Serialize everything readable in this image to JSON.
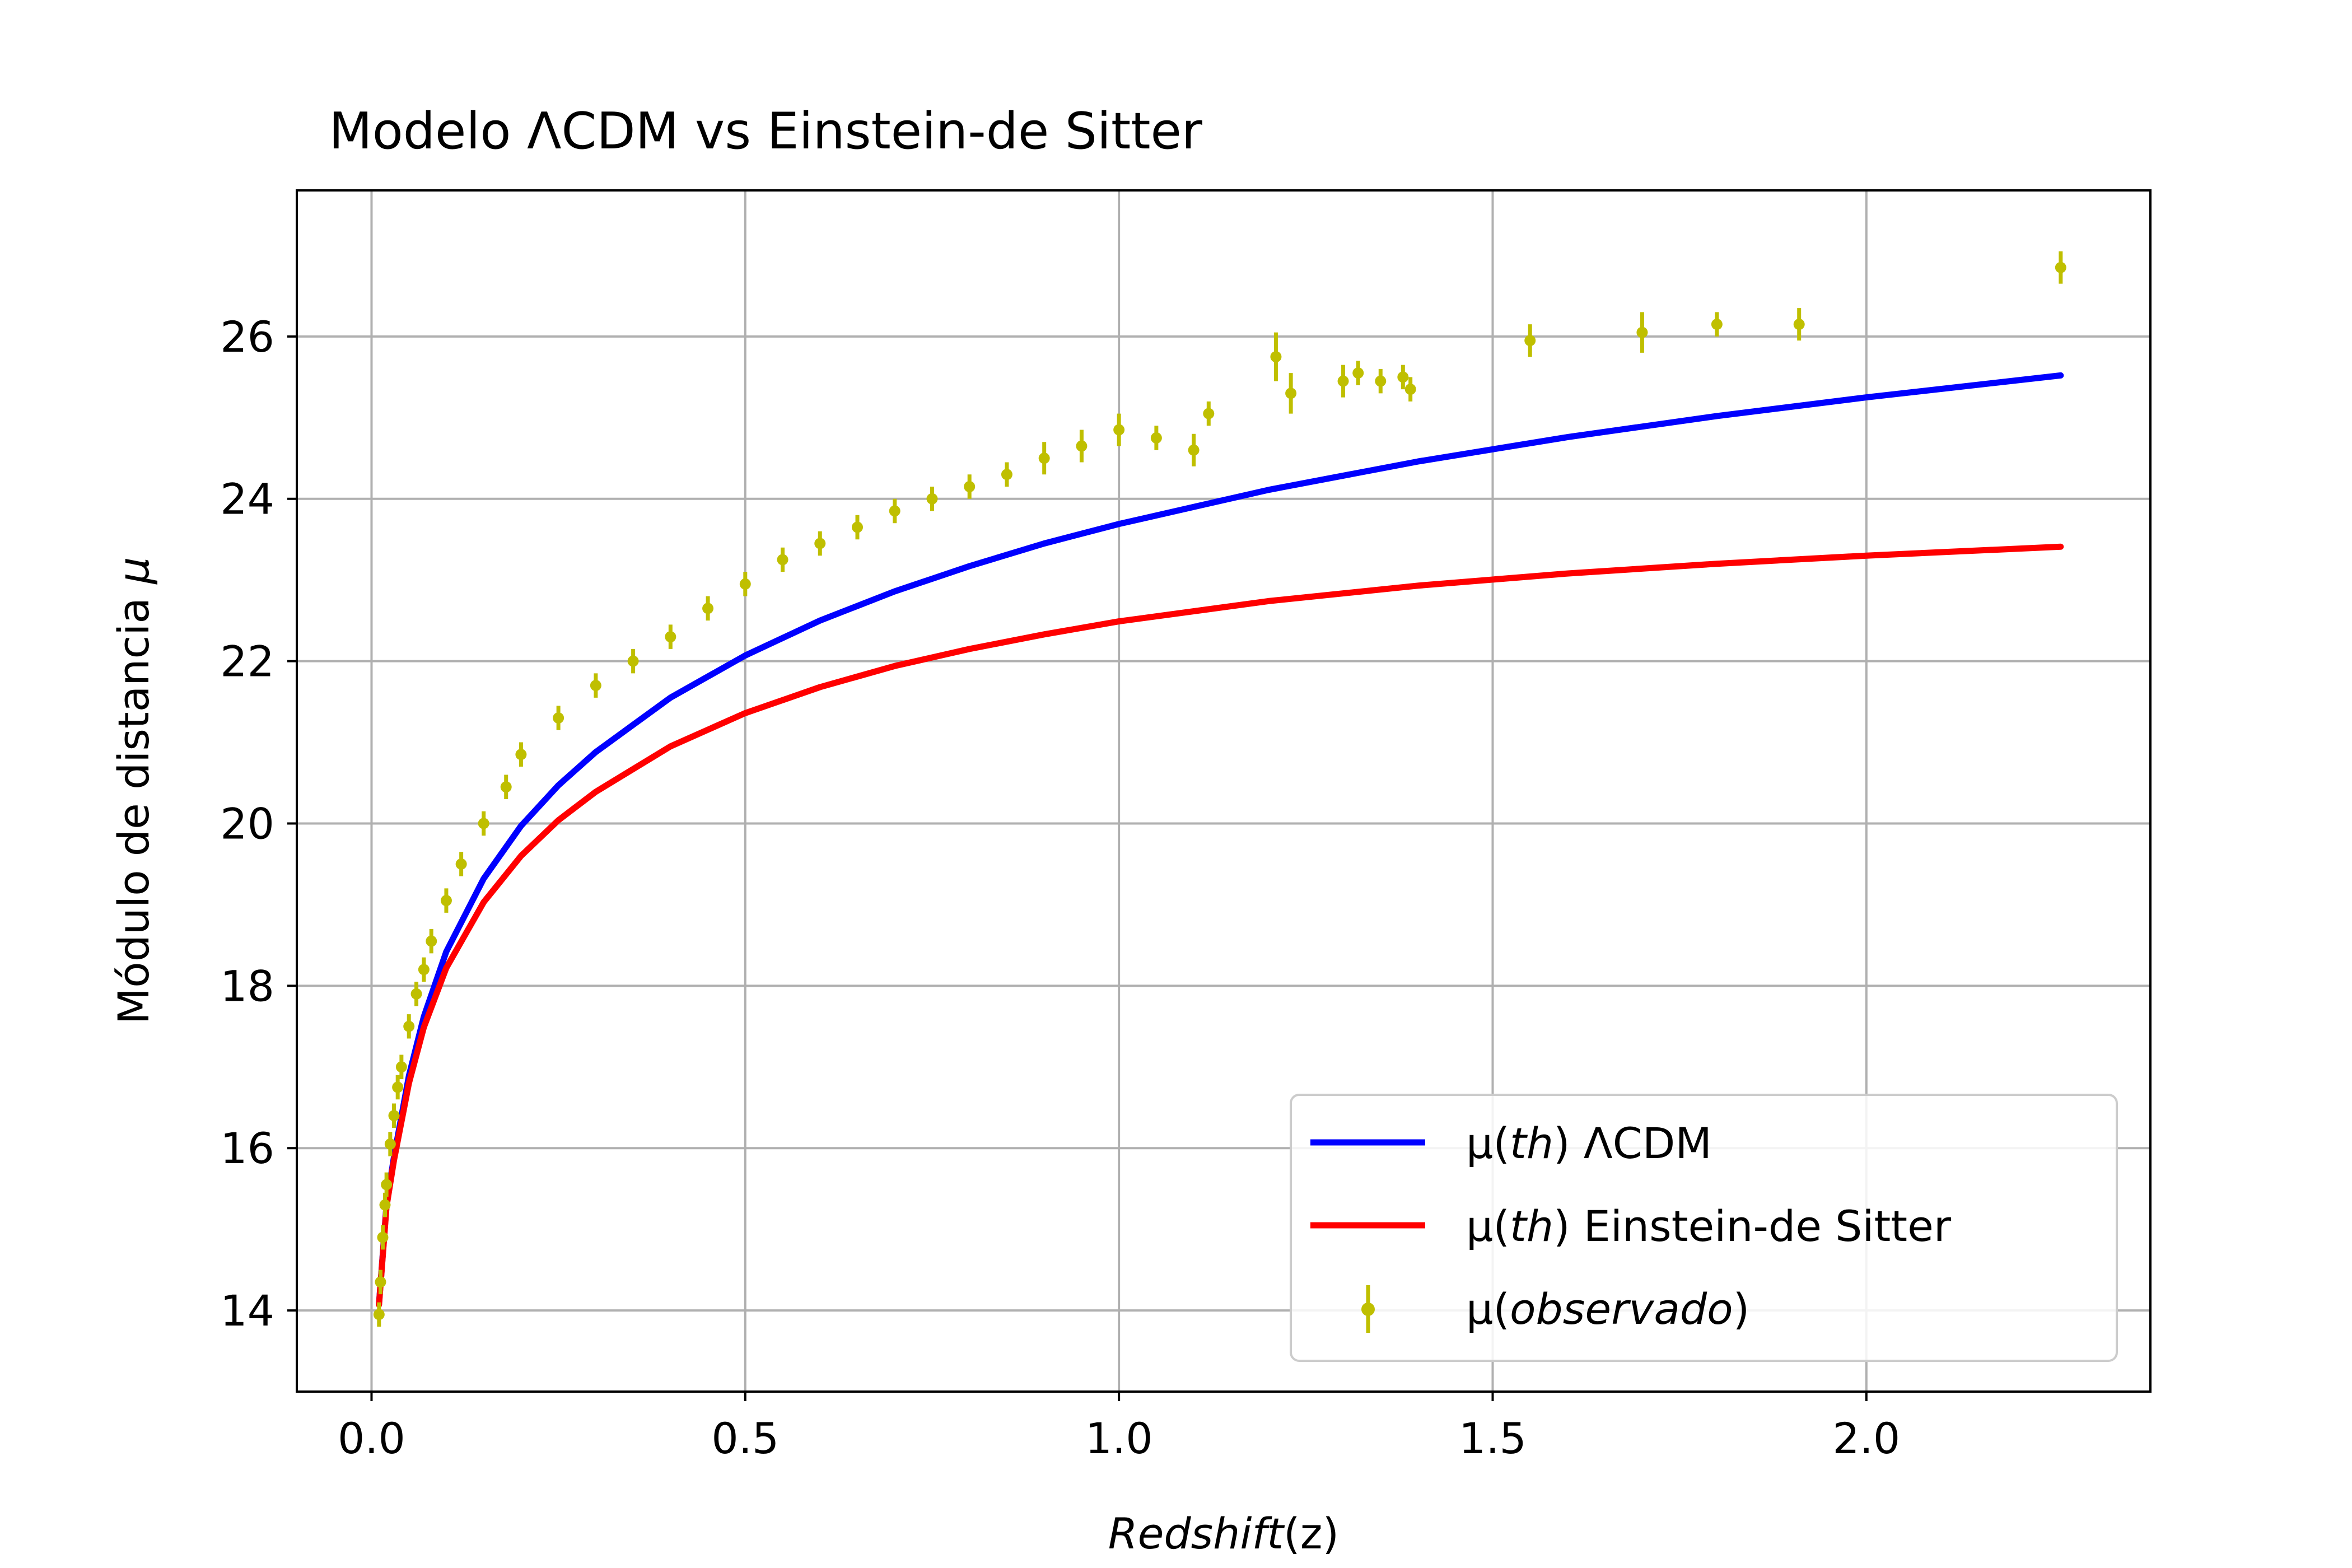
{
  "chart_data": {
    "type": "line",
    "title": "Modelo ΛCDM vs Einstein-de Sitter",
    "xlabel": {
      "italic": "Redshift",
      "plain": "(z)"
    },
    "ylabel": {
      "plain": "Módulo de distancia ",
      "italic": "μ"
    },
    "xlim": [
      -0.1,
      2.38
    ],
    "ylim": [
      13.0,
      27.8
    ],
    "grid": true,
    "legend_position": "lower right",
    "x_ticks": [
      "0.0",
      "0.5",
      "1.0",
      "1.5",
      "2.0"
    ],
    "x_tick_values": [
      0.0,
      0.5,
      1.0,
      1.5,
      2.0
    ],
    "y_ticks": [
      "14",
      "16",
      "18",
      "20",
      "22",
      "24",
      "26"
    ],
    "y_tick_values": [
      14,
      16,
      18,
      20,
      22,
      24,
      26
    ],
    "series": [
      {
        "name": "μ(th) ΛCDM",
        "legend": {
          "pre": "μ(",
          "italic": "th",
          "post": ") ΛCDM"
        },
        "color": "#0000ff",
        "kind": "line",
        "x": [
          0.01,
          0.02,
          0.03,
          0.05,
          0.07,
          0.1,
          0.15,
          0.2,
          0.25,
          0.3,
          0.4,
          0.5,
          0.6,
          0.7,
          0.8,
          0.9,
          1.0,
          1.2,
          1.4,
          1.6,
          1.8,
          2.0,
          2.26
        ],
        "y": [
          14.08,
          15.3,
          15.89,
          16.89,
          17.62,
          18.42,
          19.32,
          19.97,
          20.47,
          20.88,
          21.55,
          22.07,
          22.5,
          22.86,
          23.17,
          23.45,
          23.69,
          24.11,
          24.46,
          24.76,
          25.02,
          25.25,
          25.52
        ]
      },
      {
        "name": "μ(th) Einstein-de Sitter",
        "legend": {
          "pre": "μ(",
          "italic": "th",
          "post": ") Einstein-de Sitter"
        },
        "color": "#ff0000",
        "kind": "line",
        "x": [
          0.01,
          0.02,
          0.03,
          0.05,
          0.07,
          0.1,
          0.15,
          0.2,
          0.25,
          0.3,
          0.4,
          0.5,
          0.6,
          0.7,
          0.8,
          0.9,
          1.0,
          1.2,
          1.4,
          1.6,
          1.8,
          2.0,
          2.26
        ],
        "y": [
          14.07,
          15.28,
          15.85,
          16.8,
          17.49,
          18.22,
          19.03,
          19.6,
          20.04,
          20.39,
          20.95,
          21.36,
          21.68,
          21.94,
          22.15,
          22.33,
          22.49,
          22.74,
          22.93,
          23.08,
          23.2,
          23.3,
          23.41
        ]
      },
      {
        "name": "μ(observado)",
        "legend": {
          "pre": "μ(",
          "italic": "observado",
          "post": ")"
        },
        "color": "#bfbf00",
        "kind": "errorbar",
        "x": [
          0.01,
          0.012,
          0.015,
          0.018,
          0.02,
          0.025,
          0.03,
          0.035,
          0.04,
          0.05,
          0.06,
          0.07,
          0.08,
          0.1,
          0.12,
          0.15,
          0.18,
          0.2,
          0.25,
          0.3,
          0.35,
          0.4,
          0.45,
          0.5,
          0.55,
          0.6,
          0.65,
          0.7,
          0.75,
          0.8,
          0.85,
          0.9,
          0.95,
          1.0,
          1.05,
          1.1,
          1.12,
          1.21,
          1.23,
          1.3,
          1.32,
          1.35,
          1.38,
          1.39,
          1.55,
          1.7,
          1.8,
          1.91,
          2.26
        ],
        "y": [
          13.95,
          14.35,
          14.9,
          15.3,
          15.55,
          16.05,
          16.4,
          16.75,
          17.0,
          17.5,
          17.9,
          18.2,
          18.55,
          19.05,
          19.5,
          20.0,
          20.45,
          20.85,
          21.3,
          21.7,
          22.0,
          22.3,
          22.65,
          22.95,
          23.25,
          23.45,
          23.65,
          23.85,
          24.0,
          24.15,
          24.3,
          24.5,
          24.65,
          24.85,
          24.75,
          24.6,
          25.05,
          25.75,
          25.3,
          25.45,
          25.55,
          25.45,
          25.5,
          25.35,
          25.95,
          26.05,
          26.15,
          26.15,
          26.85
        ],
        "err": [
          0.15,
          0.15,
          0.15,
          0.15,
          0.15,
          0.15,
          0.15,
          0.15,
          0.15,
          0.15,
          0.15,
          0.15,
          0.15,
          0.15,
          0.15,
          0.15,
          0.15,
          0.15,
          0.15,
          0.15,
          0.15,
          0.15,
          0.15,
          0.15,
          0.15,
          0.15,
          0.15,
          0.15,
          0.15,
          0.15,
          0.15,
          0.2,
          0.2,
          0.2,
          0.15,
          0.2,
          0.15,
          0.3,
          0.25,
          0.2,
          0.15,
          0.15,
          0.15,
          0.15,
          0.2,
          0.25,
          0.15,
          0.2,
          0.2
        ]
      }
    ]
  }
}
